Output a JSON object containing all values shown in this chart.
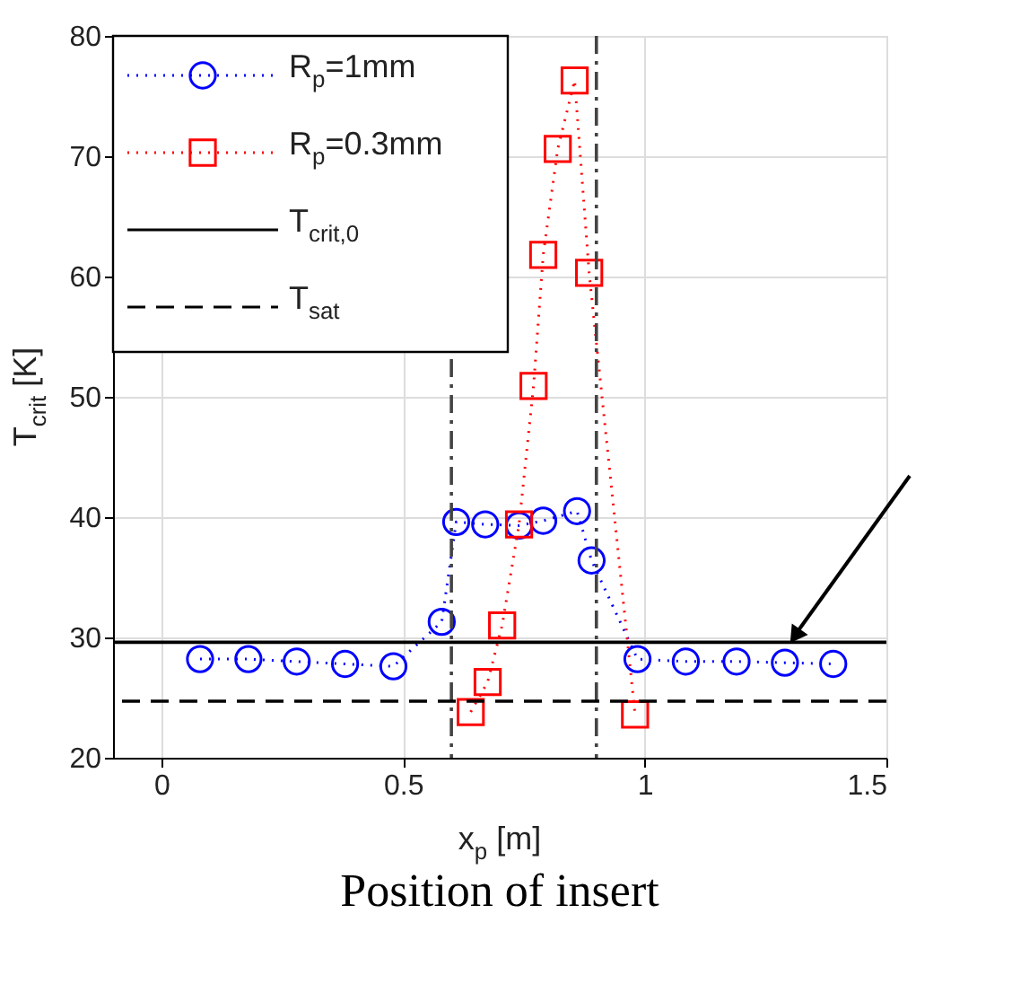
{
  "chart_data": {
    "type": "line",
    "xlabel": "x$_{p}$ [m]",
    "ylabel": "T$_{crit}$ [K]",
    "annotations": [
      "Position of insert"
    ],
    "xlim": [
      -0.1,
      1.5
    ],
    "xticks": [
      0,
      0.5,
      1,
      1.5
    ],
    "ylim": [
      20,
      80
    ],
    "yticks": [
      20,
      30,
      40,
      50,
      60,
      70,
      80
    ],
    "grid": true,
    "legend": "top left",
    "line_style": "dotted",
    "series": [
      {
        "name": "R$_{p}$=1mm",
        "color": "#0000ff",
        "marker": "circle",
        "x": [
          0.08,
          0.18,
          0.28,
          0.38,
          0.48,
          0.58,
          0.61,
          0.67,
          0.74,
          0.79,
          0.86,
          0.89,
          0.985,
          1.085,
          1.19,
          1.29,
          1.39
        ],
        "values": [
          28.2,
          28.2,
          28.0,
          27.8,
          27.6,
          31.3,
          39.6,
          39.4,
          39.3,
          39.7,
          40.5,
          36.4,
          28.2,
          28.0,
          28.0,
          27.9,
          27.8
        ]
      },
      {
        "name": "R$_{p}$=0.3mm",
        "color": "#ff0000",
        "marker": "square",
        "x": [
          0.64,
          0.675,
          0.705,
          0.74,
          0.77,
          0.79,
          0.82,
          0.855,
          0.885,
          0.98
        ],
        "values": [
          23.8,
          26.3,
          31.0,
          39.4,
          50.9,
          61.8,
          70.6,
          76.3,
          60.3,
          23.6
        ]
      }
    ],
    "ref_lines": [
      {
        "axis": "x",
        "value": 0.6,
        "color": "#444444",
        "line_style": "dashdot"
      },
      {
        "axis": "x",
        "value": 0.9,
        "color": "#444444",
        "line_style": "dashdot"
      },
      {
        "axis": "y",
        "value": 29.6,
        "label": "T$_{crit,0}$",
        "color": "#000000",
        "line_style": "solid"
      },
      {
        "axis": "y",
        "value": 24.7,
        "label": "T$_{sat}$",
        "color": "#000000",
        "line_style": "dashed"
      }
    ]
  }
}
